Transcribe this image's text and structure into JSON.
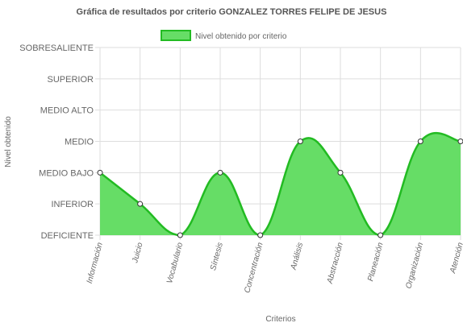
{
  "chart_data": {
    "type": "area",
    "title": "Gráfica de resultados por criterio GONZALEZ TORRES FELIPE DE JESUS",
    "xlabel": "Criterios",
    "ylabel": "Nivel obtenido",
    "legend": {
      "label": "Nivel obtenido por criterio",
      "position": "top"
    },
    "y_levels": [
      "DEFICIENTE",
      "INFERIOR",
      "MEDIO BAJO",
      "MEDIO",
      "MEDIO ALTO",
      "SUPERIOR",
      "SOBRESALIENTE"
    ],
    "ylim": [
      0,
      6
    ],
    "categories": [
      "Información",
      "Juicio",
      "Vocabulario",
      "Síntesis",
      "Concentración",
      "Análisis",
      "Abstracción",
      "Planeación",
      "Organización",
      "Atención"
    ],
    "series": [
      {
        "name": "Nivel obtenido por criterio",
        "values": [
          2,
          1,
          0,
          2,
          0,
          3,
          2,
          0,
          3,
          3
        ]
      }
    ],
    "colors": {
      "fill": "#66dd66",
      "line": "#22bb22",
      "point_fill": "#ffffff",
      "point_stroke": "#333333",
      "grid": "#dddddd"
    },
    "grid": true,
    "smooth": true
  }
}
